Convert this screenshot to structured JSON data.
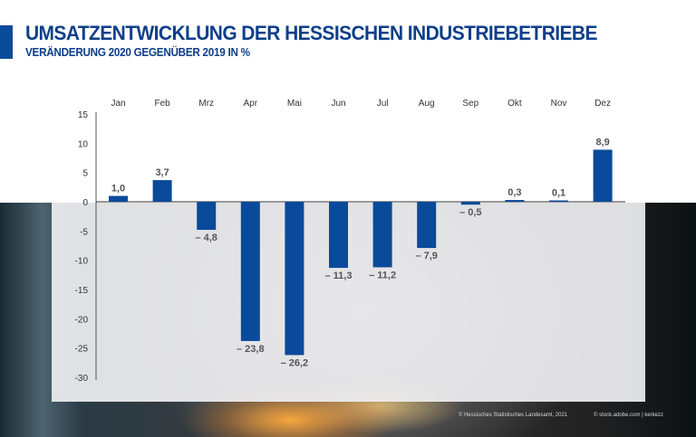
{
  "header": {
    "title": "UMSATZENTWICKLUNG DER HESSISCHEN INDUSTRIEBETRIEBE",
    "subtitle": "VERÄNDERUNG 2020 GEGENÜBER 2019 IN %"
  },
  "footer": {
    "source": "© Hessisches Statistisches Landesamt, 2021",
    "photo_credit": "© stock.adobe.com | kerkezz"
  },
  "colors": {
    "accent": "#0a4a9a",
    "bar": "#0a4a9a",
    "title": "#0d3f8a"
  },
  "chart_data": {
    "type": "bar",
    "title": "UMSATZENTWICKLUNG DER HESSISCHEN INDUSTRIEBETRIEBE",
    "subtitle": "VERÄNDERUNG 2020 GEGENÜBER 2019 IN %",
    "xlabel": "",
    "ylabel": "",
    "categories": [
      "Jan",
      "Feb",
      "Mrz",
      "Apr",
      "Mai",
      "Jun",
      "Jul",
      "Aug",
      "Sep",
      "Okt",
      "Nov",
      "Dez"
    ],
    "values": [
      1.0,
      3.7,
      -4.8,
      -23.8,
      -26.2,
      -11.3,
      -11.2,
      -7.9,
      -0.5,
      0.3,
      0.1,
      8.9
    ],
    "value_labels": [
      "1,0",
      "3,7",
      "– 4,8",
      "– 23,8",
      "– 26,2",
      "– 11,3",
      "– 11,2",
      "– 7,9",
      "– 0,5",
      "0,3",
      "0,1",
      "8,9"
    ],
    "ylim": [
      -30,
      15
    ],
    "yticks": [
      15,
      10,
      5,
      0,
      -5,
      -10,
      -15,
      -20,
      -25,
      -30
    ],
    "ytick_labels": [
      "15",
      "10",
      "5",
      "0",
      "-5",
      "-10",
      "-15",
      "-20",
      "-25",
      "-30"
    ],
    "category_axis_position": "top",
    "grid": false,
    "legend": "none"
  }
}
